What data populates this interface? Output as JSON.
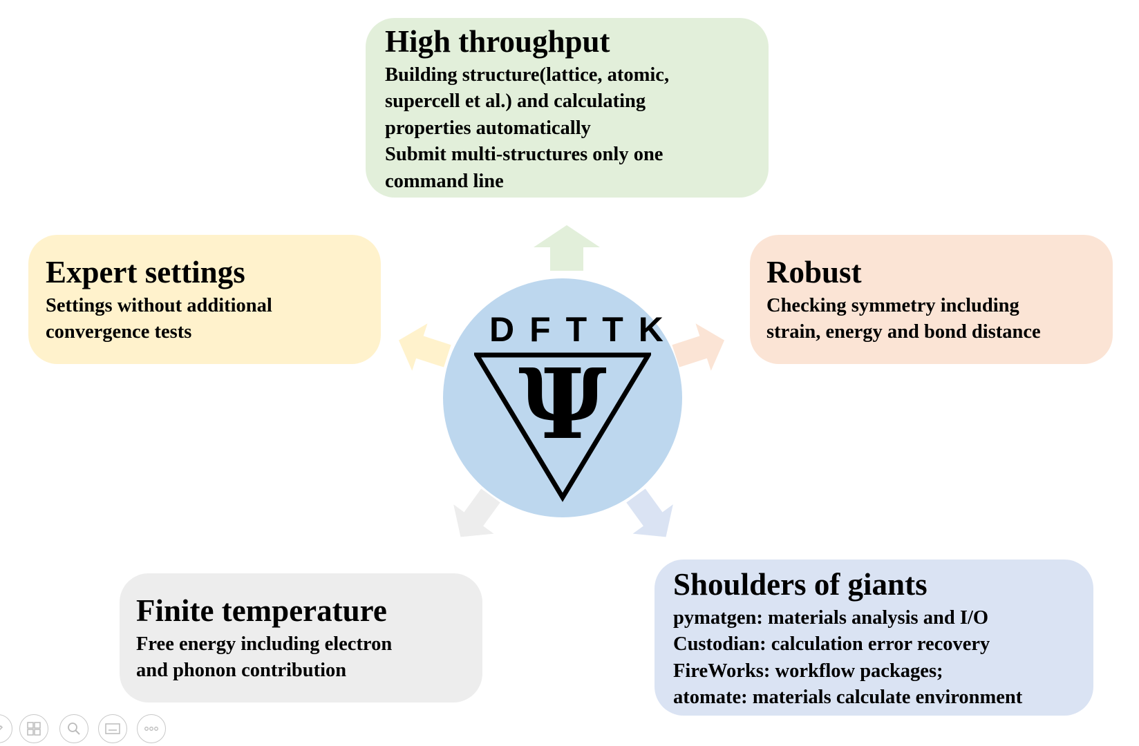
{
  "center": {
    "logo_text": "DFTTK",
    "symbol": "Ψ"
  },
  "cards": {
    "top": {
      "title": "High throughput",
      "lines": [
        "Building structure(lattice, atomic,",
        "supercell et al.) and calculating",
        "properties automatically",
        "Submit multi-structures only one",
        "command line"
      ]
    },
    "left": {
      "title": "Expert settings",
      "lines": [
        "Settings without additional",
        "convergence tests"
      ]
    },
    "right": {
      "title": "Robust",
      "lines": [
        "Checking symmetry including",
        "strain, energy and bond distance"
      ]
    },
    "bottom_left": {
      "title": "Finite temperature",
      "lines": [
        "Free energy including electron",
        "and phonon contribution"
      ]
    },
    "bottom_right": {
      "title": "Shoulders of giants",
      "lines": [
        "pymatgen: materials analysis and I/O",
        "Custodian: calculation error recovery",
        "FireWorks: workflow packages;",
        "atomate: materials calculate environment"
      ]
    }
  },
  "colors": {
    "top": "#e2efda",
    "left": "#fff2cc",
    "right": "#fbe4d5",
    "bottom_left": "#ededed",
    "bottom_right": "#dae3f3",
    "hub": "#bdd7ee"
  },
  "toolbar": {
    "icons": [
      "pen-icon",
      "slides-grid-icon",
      "zoom-icon",
      "subtitles-icon",
      "more-icon"
    ]
  }
}
